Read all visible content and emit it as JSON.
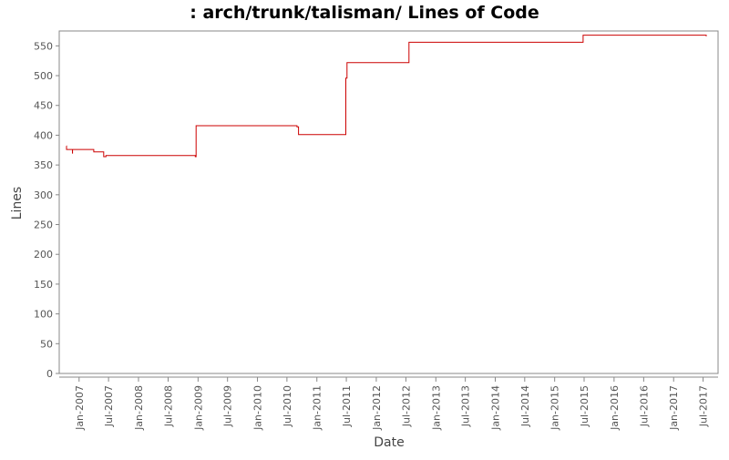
{
  "chart_data": {
    "type": "line",
    "title": ": arch/trunk/talisman/ Lines of Code",
    "xlabel": "Date",
    "ylabel": "Lines",
    "ylim": [
      0,
      575
    ],
    "xlim": [
      "2006-09-01",
      "2017-10-01"
    ],
    "yticks": [
      0,
      50,
      100,
      150,
      200,
      250,
      300,
      350,
      400,
      450,
      500,
      550
    ],
    "xticks": [
      "Jan-2007",
      "Jul-2007",
      "Jan-2008",
      "Jul-2008",
      "Jan-2009",
      "Jul-2009",
      "Jan-2010",
      "Jul-2010",
      "Jan-2011",
      "Jul-2011",
      "Jan-2012",
      "Jul-2012",
      "Jan-2013",
      "Jul-2013",
      "Jan-2014",
      "Jul-2014",
      "Jan-2015",
      "Jul-2015",
      "Jan-2016",
      "Jul-2016",
      "Jan-2017",
      "Jul-2017"
    ],
    "grid": false,
    "line_color": "#cc0000",
    "series": [
      {
        "x": [
          "2006-10-15",
          "2006-10-16",
          "2006-11-20",
          "2006-11-21",
          "2006-11-22",
          "2007-04-01",
          "2007-06-01",
          "2007-06-15",
          "2008-06-01",
          "2008-12-15",
          "2008-12-20",
          "2010-06-01",
          "2010-09-01",
          "2010-09-10",
          "2011-06-20",
          "2011-06-28",
          "2011-07-05",
          "2012-07-10",
          "2012-07-20",
          "2015-06-15",
          "2015-06-25",
          "2017-07-15",
          "2017-07-20"
        ],
        "y": [
          382,
          376,
          376,
          370,
          376,
          372,
          364,
          366,
          366,
          364,
          416,
          416,
          414,
          401,
          401,
          496,
          522,
          522,
          556,
          556,
          568,
          568,
          566
        ]
      }
    ]
  }
}
